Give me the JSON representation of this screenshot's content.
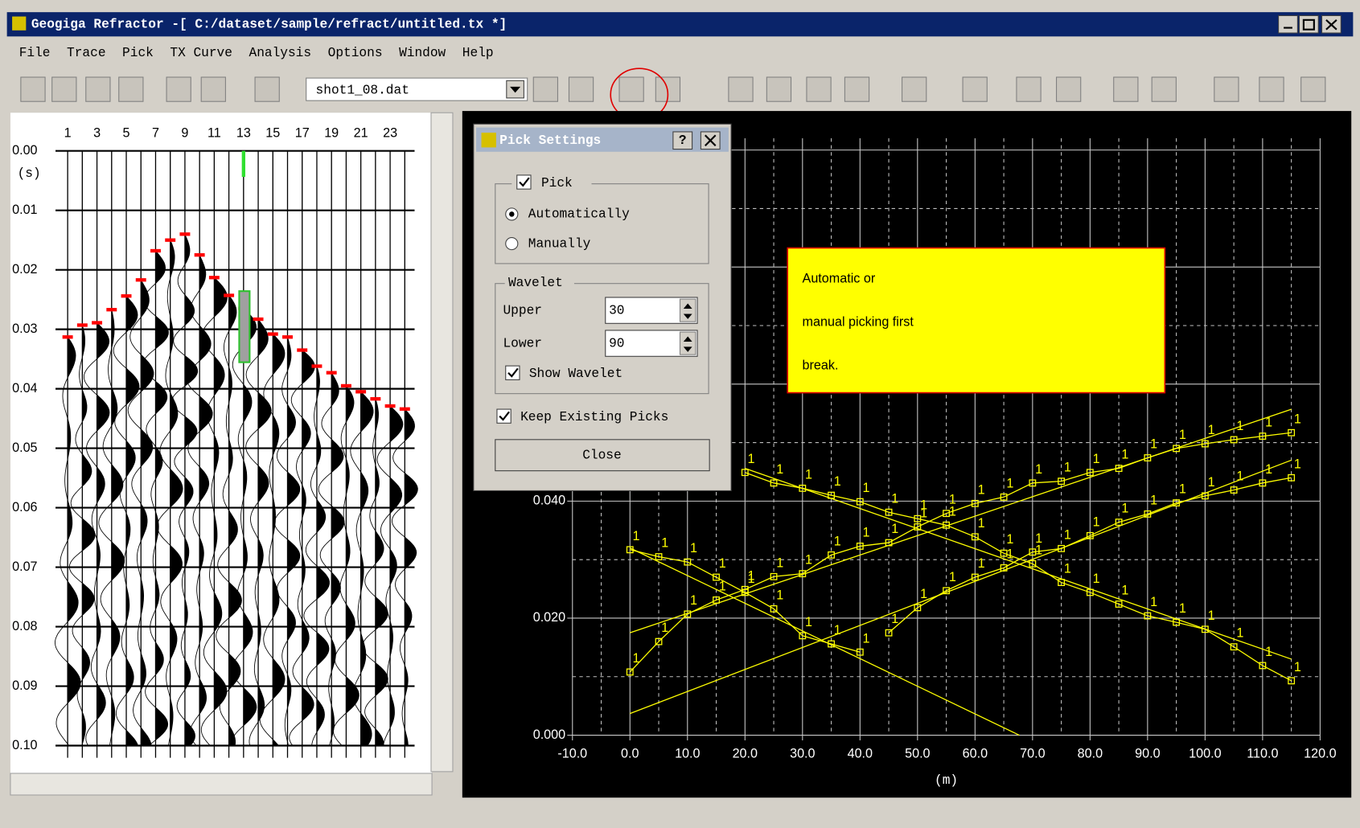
{
  "window": {
    "title": "Geogiga Refractor -[ C:/dataset/sample/refract/untitled.tx *]",
    "menu": [
      "File",
      "Trace",
      "Pick",
      "TX Curve",
      "Analysis",
      "Options",
      "Window",
      "Help"
    ],
    "file_combo": "shot1_08.dat"
  },
  "trace_panel": {
    "trace_labels": [
      1,
      3,
      5,
      7,
      9,
      11,
      13,
      15,
      17,
      19,
      21,
      23
    ],
    "time_unit": "(s)",
    "ylim": [
      0,
      0.1
    ],
    "yticks": [
      {
        "value": 0,
        "label": "0.00"
      },
      {
        "value": 0.01,
        "label": "0.01"
      },
      {
        "value": 0.02,
        "label": "0.02"
      },
      {
        "value": 0.03,
        "label": "0.03"
      },
      {
        "value": 0.04,
        "label": "0.04"
      },
      {
        "value": 0.05,
        "label": "0.05"
      },
      {
        "value": 0.06,
        "label": "0.06"
      },
      {
        "value": 0.07,
        "label": "0.07"
      },
      {
        "value": 0.08,
        "label": "0.08"
      },
      {
        "value": 0.09,
        "label": "0.09"
      },
      {
        "value": 0.1,
        "label": "0.10"
      }
    ],
    "pick_color": "#ff0000",
    "picks": [
      0.0313,
      0.0293,
      0.0289,
      0.0267,
      0.0244,
      0.0217,
      0.0168,
      0.015,
      0.014,
      0.0175,
      0.0213,
      0.0243,
      0.0265,
      0.0283,
      0.0308,
      0.0313,
      0.0335,
      0.0362,
      0.0373,
      0.0395,
      0.0405,
      0.0417,
      0.0429,
      0.0434
    ]
  },
  "chart_data": {
    "type": "line",
    "x_label": "(m)",
    "xlim": [
      -10,
      120
    ],
    "ylim": [
      0,
      0.102
    ],
    "xticks": [
      {
        "value": -10,
        "label": "-10.0"
      },
      {
        "value": 0,
        "label": "0.0"
      },
      {
        "value": 10,
        "label": "10.0"
      },
      {
        "value": 20,
        "label": "20.0"
      },
      {
        "value": 30,
        "label": "30.0"
      },
      {
        "value": 40,
        "label": "40.0"
      },
      {
        "value": 50,
        "label": "50.0"
      },
      {
        "value": 60,
        "label": "60.0"
      },
      {
        "value": 70,
        "label": "70.0"
      },
      {
        "value": 80,
        "label": "80.0"
      },
      {
        "value": 90,
        "label": "90.0"
      },
      {
        "value": 100,
        "label": "100.0"
      },
      {
        "value": 110,
        "label": "110.0"
      },
      {
        "value": 120,
        "label": "120.0"
      }
    ],
    "yticks": [
      {
        "value": 0,
        "label": "0.000"
      },
      {
        "value": 0.02,
        "label": "0.020"
      },
      {
        "value": 0.04,
        "label": "0.040"
      }
    ],
    "xgrid_minor": [
      -5,
      5,
      15,
      25,
      35,
      45,
      55,
      65,
      75,
      85,
      95,
      105,
      115
    ],
    "ygrid_major": [
      0,
      0.02,
      0.04,
      0.06,
      0.08,
      0.1
    ],
    "ygrid_minor": [
      0.01,
      0.03,
      0.05,
      0.07,
      0.09
    ],
    "series": [
      {
        "color": "#ffff00",
        "markers": true,
        "label": "1",
        "x": [
          0,
          5,
          10,
          15,
          20,
          25,
          30,
          35,
          40,
          45,
          50,
          55,
          60,
          65,
          70,
          75,
          80,
          85,
          90,
          95,
          100,
          105,
          110,
          115
        ],
        "values": [
          0.0108,
          0.016,
          0.0207,
          0.0231,
          0.0249,
          0.0271,
          0.0276,
          0.0308,
          0.0323,
          0.0329,
          0.0356,
          0.0379,
          0.0396,
          0.0407,
          0.0431,
          0.0434,
          0.0449,
          0.0456,
          0.0474,
          0.049,
          0.0498,
          0.0505,
          0.0511,
          0.0517
        ]
      },
      {
        "color": "#ffff00",
        "markers": true,
        "label": "1",
        "x": [
          115,
          110,
          105,
          100,
          95,
          90,
          85,
          80,
          75,
          70,
          65,
          60,
          55,
          50,
          45,
          40,
          35,
          30,
          25,
          20
        ],
        "values": [
          0.0093,
          0.0119,
          0.0151,
          0.0181,
          0.0193,
          0.0204,
          0.0224,
          0.0244,
          0.0261,
          0.0293,
          0.0311,
          0.0339,
          0.0359,
          0.037,
          0.0381,
          0.0399,
          0.041,
          0.0422,
          0.0431,
          0.0449
        ]
      },
      {
        "color": "#ffff00",
        "markers": true,
        "label": "1",
        "x": [
          45,
          50,
          55,
          60,
          65,
          70,
          75,
          80,
          85,
          90,
          95,
          100,
          105,
          110,
          115
        ],
        "values": [
          0.0175,
          0.0218,
          0.0247,
          0.027,
          0.0286,
          0.0313,
          0.0319,
          0.0341,
          0.0364,
          0.0378,
          0.0397,
          0.0409,
          0.0419,
          0.0431,
          0.044
        ]
      },
      {
        "color": "#ffff00",
        "markers": true,
        "label": "1",
        "x": [
          40,
          35,
          30,
          25,
          20,
          15,
          10,
          5,
          0
        ],
        "values": [
          0.0142,
          0.0156,
          0.017,
          0.0216,
          0.0244,
          0.027,
          0.0296,
          0.0305,
          0.0317
        ]
      },
      {
        "color": "#ffff00",
        "markers": false,
        "x": [
          0,
          115
        ],
        "values": [
          0.0037,
          0.047
        ]
      },
      {
        "color": "#ffff00",
        "markers": false,
        "x": [
          0,
          67.7
        ],
        "values": [
          0.032,
          0
        ]
      },
      {
        "color": "#ffff00",
        "markers": false,
        "x": [
          0,
          115
        ],
        "values": [
          0.0175,
          0.0557
        ]
      },
      {
        "color": "#ffff00",
        "markers": false,
        "x": [
          20,
          115
        ],
        "values": [
          0.0456,
          0.013
        ]
      }
    ]
  },
  "dialog": {
    "title": "Pick Settings",
    "pick": "Pick",
    "automatically": "Automatically",
    "manually": "Manually",
    "wavelet": "Wavelet",
    "upper": "Upper",
    "upper_value": "30",
    "lower": "Lower",
    "lower_value": "90",
    "show_wavelet": "Show Wavelet",
    "keep_picks": "Keep Existing Picks",
    "close": "Close"
  },
  "annotation": {
    "lines": [
      "Automatic or",
      "manual picking first",
      "break."
    ]
  }
}
